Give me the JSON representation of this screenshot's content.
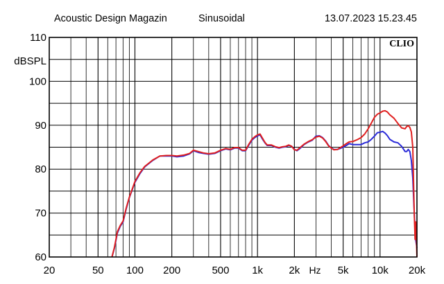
{
  "header": {
    "left": "Acoustic Design Magazin",
    "middle": "Sinusoidal",
    "right": "13.07.2023 15.23.45"
  },
  "logo_text": "CLIO",
  "chart_data": {
    "type": "line",
    "title": "",
    "ylabel": "dBSPL",
    "xlabel": "Hz",
    "x_scale": "log",
    "xlim": [
      20,
      20000
    ],
    "ylim": [
      60,
      110
    ],
    "grid": true,
    "x_ticks": [
      {
        "v": 20,
        "label": "20"
      },
      {
        "v": 50,
        "label": "50"
      },
      {
        "v": 100,
        "label": "100"
      },
      {
        "v": 200,
        "label": "200"
      },
      {
        "v": 500,
        "label": "500"
      },
      {
        "v": 1000,
        "label": "1k"
      },
      {
        "v": 2000,
        "label": "2k"
      },
      {
        "v": 5000,
        "label": "5k"
      },
      {
        "v": 10000,
        "label": "10k"
      },
      {
        "v": 20000,
        "label": "20k"
      }
    ],
    "y_ticks": [
      {
        "v": 60,
        "label": "60"
      },
      {
        "v": 70,
        "label": "70"
      },
      {
        "v": 80,
        "label": "80"
      },
      {
        "v": 90,
        "label": "90"
      },
      {
        "v": 100,
        "label": "100"
      },
      {
        "v": 110,
        "label": "110"
      }
    ],
    "series": [
      {
        "color": "#2a2ad8",
        "x": [
          65,
          68,
          72,
          76,
          80,
          85,
          90,
          100,
          110,
          120,
          140,
          160,
          180,
          200,
          220,
          250,
          280,
          300,
          330,
          360,
          400,
          450,
          500,
          550,
          600,
          650,
          700,
          750,
          800,
          850,
          900,
          950,
          1000,
          1050,
          1100,
          1150,
          1200,
          1300,
          1400,
          1500,
          1600,
          1700,
          1800,
          1900,
          2000,
          2100,
          2200,
          2400,
          2600,
          2800,
          3000,
          3200,
          3400,
          3600,
          3800,
          4000,
          4200,
          4500,
          4800,
          5000,
          5300,
          5600,
          6000,
          6500,
          7000,
          7500,
          8000,
          8500,
          9000,
          9500,
          10000,
          10500,
          11000,
          11500,
          12000,
          13000,
          14000,
          15000,
          16000,
          16500,
          17000,
          17500,
          18000,
          18500,
          19000,
          19500,
          20000
        ],
        "y": [
          60,
          62,
          65.5,
          67,
          68,
          71,
          73.5,
          77,
          79,
          80.5,
          82,
          83,
          83,
          83,
          82.8,
          83,
          83.5,
          84.2,
          83.8,
          83.6,
          83.4,
          83.6,
          84.2,
          84.6,
          84.4,
          84.8,
          84.8,
          84.2,
          84.2,
          85.5,
          86.6,
          87.2,
          87.6,
          87.8,
          86.8,
          86,
          85.4,
          85.4,
          85,
          84.8,
          85,
          85.1,
          85.4,
          85.2,
          84.5,
          84.2,
          84.6,
          85.6,
          86.2,
          86.6,
          87.5,
          87.6,
          87.2,
          86.4,
          85.4,
          84.8,
          84.5,
          84.5,
          84.8,
          85,
          85.4,
          85.8,
          85.6,
          85.6,
          85.6,
          86,
          86.2,
          86.8,
          87.5,
          88.3,
          88.4,
          88.6,
          88.2,
          87.6,
          86.8,
          86.2,
          86,
          85.2,
          84,
          84,
          84.5,
          84,
          82,
          78,
          70,
          64,
          62
        ]
      },
      {
        "color": "#e02020",
        "x": [
          65,
          68,
          72,
          76,
          80,
          85,
          90,
          100,
          110,
          120,
          140,
          160,
          180,
          200,
          220,
          250,
          280,
          300,
          330,
          360,
          400,
          450,
          500,
          550,
          600,
          650,
          700,
          750,
          800,
          850,
          900,
          950,
          1000,
          1050,
          1100,
          1150,
          1200,
          1300,
          1400,
          1500,
          1600,
          1700,
          1800,
          1900,
          2000,
          2100,
          2200,
          2400,
          2600,
          2800,
          3000,
          3200,
          3400,
          3600,
          3800,
          4000,
          4200,
          4500,
          4800,
          5000,
          5300,
          5600,
          6000,
          6500,
          7000,
          7500,
          8000,
          8500,
          9000,
          9500,
          10000,
          10500,
          11000,
          11500,
          12000,
          13000,
          14000,
          15000,
          16000,
          16500,
          17000,
          17500,
          18000,
          18500,
          19000,
          19300,
          19600,
          20000
        ],
        "y": [
          60,
          62.2,
          65.8,
          67.2,
          68.2,
          71.2,
          73.6,
          77.2,
          79.2,
          80.6,
          82.1,
          83,
          83.1,
          83.1,
          83,
          83.2,
          83.6,
          84.3,
          84,
          83.7,
          83.5,
          83.7,
          84.3,
          84.7,
          84.5,
          84.9,
          84.9,
          84.3,
          84.3,
          85.7,
          86.8,
          87.4,
          87.8,
          88,
          87,
          86.1,
          85.5,
          85.5,
          85.1,
          84.9,
          85.1,
          85.2,
          85.5,
          85.2,
          84.4,
          84.3,
          84.8,
          85.7,
          86.3,
          86.7,
          87.3,
          87.5,
          87.1,
          86.3,
          85.3,
          84.8,
          84.4,
          84.5,
          85,
          85.3,
          85.8,
          86.2,
          86.3,
          86.7,
          87.2,
          88,
          89.2,
          90.5,
          91.8,
          92.5,
          92.8,
          93.2,
          93.3,
          93,
          92.4,
          91.6,
          90.4,
          89.4,
          89.2,
          89.7,
          89.9,
          89.5,
          88.5,
          85,
          70,
          64,
          68,
          60
        ]
      }
    ]
  }
}
